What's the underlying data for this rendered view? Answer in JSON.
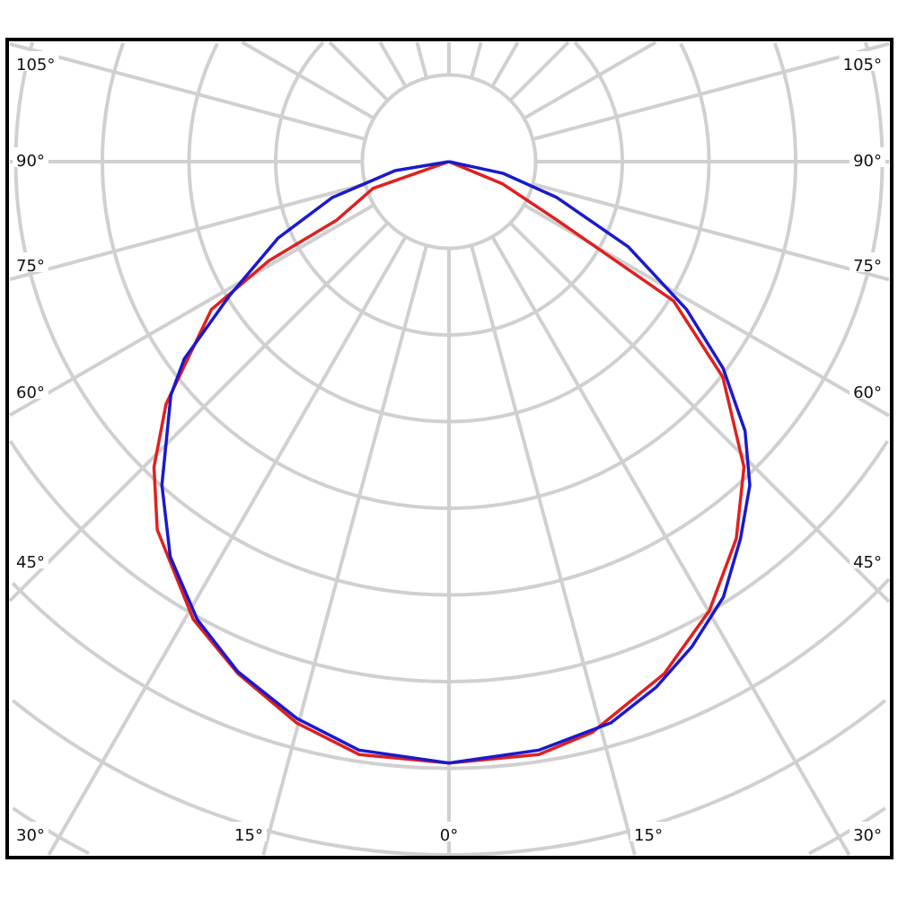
{
  "chart_data": {
    "type": "polar-line",
    "title": "",
    "angle_zero_direction": "down",
    "angle_tick_labels": {
      "left": [
        "105°",
        "90°",
        "75°",
        "60°",
        "45°",
        "30°"
      ],
      "bottom": [
        "15°",
        "0°",
        "15°"
      ],
      "right": [
        "105°",
        "90°",
        "75°",
        "60°",
        "45°",
        "30°"
      ]
    },
    "grid": true,
    "radial_gridline_step_deg": 15,
    "radial_units": "grid rings",
    "colors": {
      "grid": "#d0d0d0",
      "frame": "#000000"
    },
    "series": [
      {
        "color": "#e02020",
        "points": [
          [
            -90,
            0
          ],
          [
            -70.6,
            0.93
          ],
          [
            -62.5,
            1.46
          ],
          [
            -61.2,
            2.37
          ],
          [
            -58.1,
            3.23
          ],
          [
            -49.4,
            4.3
          ],
          [
            -44.0,
            4.9
          ],
          [
            -38.4,
            5.42
          ],
          [
            -29.2,
            6.05
          ],
          [
            -22.4,
            6.39
          ],
          [
            -15.2,
            6.71
          ],
          [
            -8.6,
            6.92
          ],
          [
            0,
            6.94
          ],
          [
            8.6,
            6.92
          ],
          [
            14.1,
            6.79
          ],
          [
            22.8,
            6.41
          ],
          [
            30.1,
            5.99
          ],
          [
            37.3,
            5.47
          ],
          [
            44.0,
            4.9
          ],
          [
            51.8,
            4.02
          ],
          [
            58.2,
            3.05
          ],
          [
            61.6,
            1.41
          ],
          [
            67.4,
            0.67
          ],
          [
            90,
            0
          ]
        ]
      },
      {
        "color": "#1a1acc",
        "points": [
          [
            -90,
            0
          ],
          [
            -80.5,
            0.63
          ],
          [
            -72.9,
            1.41
          ],
          [
            -65.9,
            2.16
          ],
          [
            -58.5,
            2.98
          ],
          [
            -53.3,
            3.81
          ],
          [
            -50.0,
            4.19
          ],
          [
            -41.6,
            4.99
          ],
          [
            -35.2,
            5.58
          ],
          [
            -28.8,
            6.03
          ],
          [
            -22.5,
            6.37
          ],
          [
            -15.3,
            6.66
          ],
          [
            -8.7,
            6.87
          ],
          [
            0,
            6.94
          ],
          [
            8.7,
            6.87
          ],
          [
            16.1,
            6.74
          ],
          [
            21.5,
            6.52
          ],
          [
            26.6,
            6.26
          ],
          [
            32.2,
            5.94
          ],
          [
            37.7,
            5.5
          ],
          [
            42.9,
            5.1
          ],
          [
            47.7,
            4.62
          ],
          [
            53.0,
            3.96
          ],
          [
            58.1,
            3.23
          ],
          [
            64.6,
            2.29
          ],
          [
            71.6,
            1.31
          ],
          [
            77.8,
            0.64
          ],
          [
            90,
            0
          ]
        ]
      }
    ]
  }
}
